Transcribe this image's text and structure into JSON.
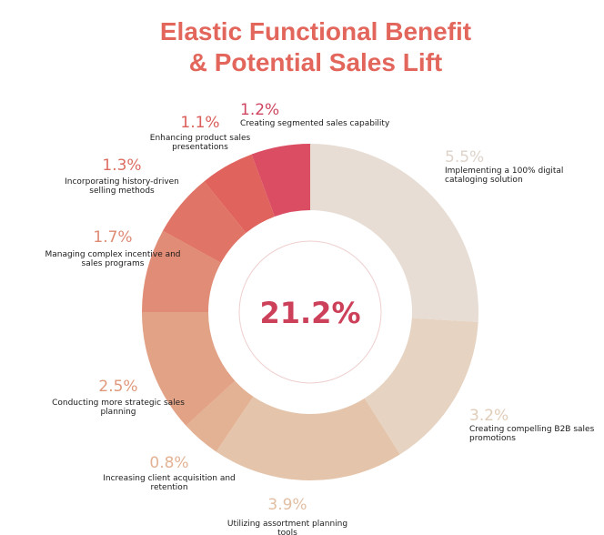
{
  "chart_data": {
    "type": "pie",
    "title_line1": "Elastic Functional Benefit",
    "title_line2": "& Potential Sales Lift",
    "center_label": "21.2%",
    "slices": [
      {
        "value": 5.5,
        "label": "5.5%",
        "desc": [
          "Implementing a 100% digital",
          "cataloging solution"
        ],
        "color": "#e7ddd4",
        "label_color": "#ddd3ca"
      },
      {
        "value": 3.2,
        "label": "3.2%",
        "desc": [
          "Creating compelling B2B sales",
          "promotions"
        ],
        "color": "#e6d3c1",
        "label_color": "#e0cdb9"
      },
      {
        "value": 3.9,
        "label": "3.9%",
        "desc": [
          "Utilizing assortment planning",
          "tools"
        ],
        "color": "#e4c4aa",
        "label_color": "#e2bea2"
      },
      {
        "value": 0.8,
        "label": "0.8%",
        "desc": [
          "Increasing client acquisition and",
          "retention"
        ],
        "color": "#e3b294",
        "label_color": "#e3b294"
      },
      {
        "value": 2.5,
        "label": "2.5%",
        "desc": [
          "Conducting more strategic sales",
          "planning"
        ],
        "color": "#e2a286",
        "label_color": "#e0987c"
      },
      {
        "value": 1.7,
        "label": "1.7%",
        "desc": [
          "Managing complex incentive and",
          "sales programs"
        ],
        "color": "#e08c76",
        "label_color": "#de8a73"
      },
      {
        "value": 1.3,
        "label": "1.3%",
        "desc": [
          "Incorporating history-driven",
          "selling methods"
        ],
        "color": "#e07567",
        "label_color": "#dd6e62"
      },
      {
        "value": 1.1,
        "label": "1.1%",
        "desc": [
          "Enhancing product sales",
          "presentations"
        ],
        "color": "#e0645d",
        "label_color": "#db5d59"
      },
      {
        "value": 1.2,
        "label": "1.2%",
        "desc": [
          "Creating segmented sales capability"
        ],
        "color": "#db4d62",
        "label_color": "#cf4560"
      }
    ]
  }
}
